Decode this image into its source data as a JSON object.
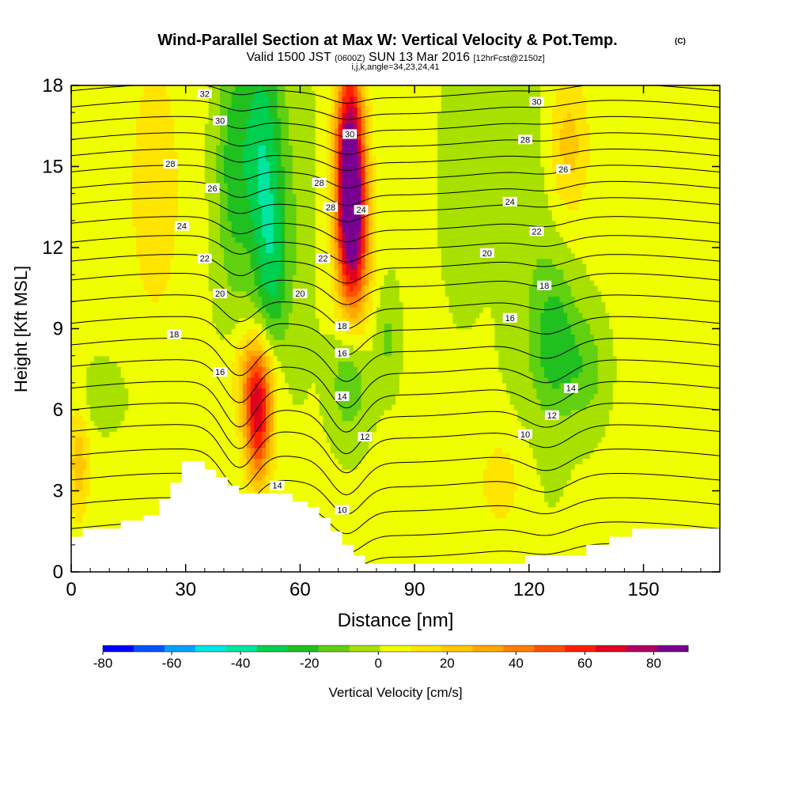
{
  "chart_data": {
    "type": "heatmap",
    "title": "Wind-Parallel Section at Max W: Vertical Velocity & Pot.Temp.",
    "title_mark": "(C)",
    "subtitle_prefix": "Valid 1500 JST",
    "subtitle_utc": "(0600Z)",
    "subtitle_date": "SUN 13 Mar 2016",
    "subtitle_fcst": "[12hrFcst@2150z]",
    "subtitle2": "i,j,k,angle=34,23,24,41",
    "xlabel": "Distance [nm]",
    "ylabel": "Height [Kft MSL]",
    "xlim": [
      0,
      170
    ],
    "ylim": [
      0,
      18
    ],
    "xticks": [
      "0",
      "30",
      "60",
      "90",
      "120",
      "150"
    ],
    "xtick_values": [
      0,
      30,
      60,
      90,
      120,
      150
    ],
    "yticks": [
      "0",
      "3",
      "6",
      "9",
      "12",
      "15",
      "18"
    ],
    "ytick_values": [
      0,
      3,
      6,
      9,
      12,
      15,
      18
    ],
    "colorbar": {
      "label": "Vertical Velocity [cm/s]",
      "ticks": [
        "-80",
        "-60",
        "-40",
        "-20",
        "0",
        "20",
        "40",
        "60",
        "80"
      ],
      "tick_values": [
        -80,
        -60,
        -40,
        -20,
        0,
        20,
        40,
        60,
        80
      ],
      "range": [
        -80,
        90
      ],
      "colors": [
        "#0000ff",
        "#0055ff",
        "#00a0ff",
        "#00e6e6",
        "#00e6a0",
        "#00d050",
        "#20c020",
        "#60d010",
        "#a8e000",
        "#f0ff00",
        "#ffe400",
        "#ffc800",
        "#ffa800",
        "#ff8000",
        "#ff5000",
        "#ff2000",
        "#e00020",
        "#b00060",
        "#7a0090"
      ]
    },
    "terrain_kft": [
      [
        0,
        1.3
      ],
      [
        3,
        1.3
      ],
      [
        3,
        1.6
      ],
      [
        13,
        1.6
      ],
      [
        13,
        1.9
      ],
      [
        19,
        1.9
      ],
      [
        19,
        2.1
      ],
      [
        23,
        2.1
      ],
      [
        23,
        2.7
      ],
      [
        26,
        2.7
      ],
      [
        26,
        3.3
      ],
      [
        29,
        3.3
      ],
      [
        29,
        4.1
      ],
      [
        35,
        4.1
      ],
      [
        35,
        3.8
      ],
      [
        38,
        3.8
      ],
      [
        38,
        3.5
      ],
      [
        41,
        3.5
      ],
      [
        41,
        3.2
      ],
      [
        44,
        3.2
      ],
      [
        44,
        2.9
      ],
      [
        58,
        2.9
      ],
      [
        58,
        2.6
      ],
      [
        62,
        2.6
      ],
      [
        62,
        2.4
      ],
      [
        65,
        2.4
      ],
      [
        65,
        2.0
      ],
      [
        68,
        2.0
      ],
      [
        68,
        1.5
      ],
      [
        71,
        1.5
      ],
      [
        71,
        1.0
      ],
      [
        74,
        1.0
      ],
      [
        74,
        0.6
      ],
      [
        77,
        0.6
      ],
      [
        77,
        0.3
      ],
      [
        119,
        0.3
      ],
      [
        119,
        0.6
      ],
      [
        135,
        0.6
      ],
      [
        135,
        1.0
      ],
      [
        141,
        1.0
      ],
      [
        141,
        1.3
      ],
      [
        147,
        1.3
      ],
      [
        147,
        1.6
      ],
      [
        170,
        1.6
      ]
    ],
    "velocity_features": [
      {
        "x": 73,
        "y": 15.3,
        "sx": 2.6,
        "sy": 2.6,
        "w": 85
      },
      {
        "x": 74,
        "y": 12.2,
        "sx": 3.0,
        "sy": 2.2,
        "w": 55
      },
      {
        "x": 49,
        "y": 5.6,
        "sx": 2.6,
        "sy": 1.6,
        "w": 62
      },
      {
        "x": 48,
        "y": 7.4,
        "sx": 4.0,
        "sy": 1.2,
        "w": 25
      },
      {
        "x": 22,
        "y": 14.2,
        "sx": 5.0,
        "sy": 3.5,
        "w": 15
      },
      {
        "x": 130,
        "y": 15.8,
        "sx": 4.0,
        "sy": 2.0,
        "w": 22
      },
      {
        "x": 113,
        "y": 3.3,
        "sx": 5.0,
        "sy": 1.5,
        "w": 12
      },
      {
        "x": 2,
        "y": 4.0,
        "sx": 2.0,
        "sy": 1.5,
        "w": 22
      },
      {
        "x": 50,
        "y": 15.5,
        "sx": 4.0,
        "sy": 3.5,
        "w": -35
      },
      {
        "x": 53,
        "y": 11.0,
        "sx": 3.0,
        "sy": 2.5,
        "w": -22
      },
      {
        "x": 42,
        "y": 15.0,
        "sx": 3.0,
        "sy": 3.5,
        "w": -20
      },
      {
        "x": 73,
        "y": 7.2,
        "sx": 3.5,
        "sy": 1.5,
        "w": -20
      },
      {
        "x": 83,
        "y": 8.7,
        "sx": 2.0,
        "sy": 1.3,
        "w": -12
      },
      {
        "x": 127,
        "y": 8.5,
        "sx": 4.0,
        "sy": 1.8,
        "w": -22
      },
      {
        "x": 135,
        "y": 7.5,
        "sx": 3.5,
        "sy": 1.4,
        "w": -15
      },
      {
        "x": 103,
        "y": 14.5,
        "sx": 4.0,
        "sy": 3.0,
        "w": -8
      },
      {
        "x": 122,
        "y": 12.0,
        "sx": 6.0,
        "sy": 6.0,
        "w": -8
      },
      {
        "x": 8,
        "y": 6.5,
        "sx": 4.0,
        "sy": 0.8,
        "w": -8
      },
      {
        "x": 60,
        "y": 13.0,
        "sx": 3.0,
        "sy": 4.0,
        "w": -6
      }
    ],
    "isentropes_kft": [
      {
        "base": 0.0,
        "amp": 0.45,
        "value": ""
      },
      {
        "base": 0.8,
        "amp": 0.6,
        "value": ""
      },
      {
        "base": 1.6,
        "amp": 0.8,
        "value": ""
      },
      {
        "base": 2.5,
        "amp": 1.0,
        "value": "10"
      },
      {
        "base": 3.4,
        "amp": 1.2,
        "value": ""
      },
      {
        "base": 4.3,
        "amp": 1.4,
        "value": "14"
      },
      {
        "base": 5.2,
        "amp": 1.5,
        "value": "12"
      },
      {
        "base": 6.0,
        "amp": 1.6,
        "value": "14"
      },
      {
        "base": 6.8,
        "amp": 1.6,
        "value": "16"
      },
      {
        "base": 7.6,
        "amp": 1.5,
        "value": "16"
      },
      {
        "base": 8.4,
        "amp": 1.3,
        "value": "18"
      },
      {
        "base": 9.2,
        "amp": 1.1,
        "value": "18"
      },
      {
        "base": 10.0,
        "amp": 0.9,
        "value": "20"
      },
      {
        "base": 10.8,
        "amp": 0.8,
        "value": "20"
      },
      {
        "base": 11.5,
        "amp": 0.7,
        "value": "22"
      },
      {
        "base": 12.2,
        "amp": 0.6,
        "value": "22"
      },
      {
        "base": 12.9,
        "amp": 0.55,
        "value": "24"
      },
      {
        "base": 13.6,
        "amp": 0.5,
        "value": "24"
      },
      {
        "base": 14.2,
        "amp": 0.5,
        "value": "26"
      },
      {
        "base": 14.8,
        "amp": 0.45,
        "value": "28"
      },
      {
        "base": 15.4,
        "amp": 0.4,
        "value": "28"
      },
      {
        "base": 16.0,
        "amp": 0.4,
        "value": "30"
      },
      {
        "base": 16.6,
        "amp": 0.35,
        "value": "30"
      },
      {
        "base": 17.2,
        "amp": 0.3,
        "value": "32"
      },
      {
        "base": 17.8,
        "amp": 0.3,
        "value": ""
      }
    ],
    "contour_labels": [
      {
        "x": 35,
        "y": 17.7,
        "text": "32"
      },
      {
        "x": 39,
        "y": 16.7,
        "text": "30"
      },
      {
        "x": 26,
        "y": 15.1,
        "text": "28"
      },
      {
        "x": 37,
        "y": 14.2,
        "text": "26"
      },
      {
        "x": 29,
        "y": 12.8,
        "text": "24"
      },
      {
        "x": 35,
        "y": 11.6,
        "text": "22"
      },
      {
        "x": 39,
        "y": 10.3,
        "text": "20"
      },
      {
        "x": 27,
        "y": 8.8,
        "text": "18"
      },
      {
        "x": 39,
        "y": 7.4,
        "text": "16"
      },
      {
        "x": 65,
        "y": 14.4,
        "text": "28"
      },
      {
        "x": 68,
        "y": 13.5,
        "text": "28"
      },
      {
        "x": 73,
        "y": 16.2,
        "text": "30"
      },
      {
        "x": 76,
        "y": 13.4,
        "text": "24"
      },
      {
        "x": 66,
        "y": 11.6,
        "text": "22"
      },
      {
        "x": 60,
        "y": 10.3,
        "text": "20"
      },
      {
        "x": 71,
        "y": 9.1,
        "text": "18"
      },
      {
        "x": 71,
        "y": 8.1,
        "text": "16"
      },
      {
        "x": 71,
        "y": 6.5,
        "text": "14"
      },
      {
        "x": 77,
        "y": 5.0,
        "text": "12"
      },
      {
        "x": 54,
        "y": 3.2,
        "text": "14"
      },
      {
        "x": 71,
        "y": 2.3,
        "text": "10"
      },
      {
        "x": 122,
        "y": 17.4,
        "text": "30"
      },
      {
        "x": 119,
        "y": 16.0,
        "text": "28"
      },
      {
        "x": 129,
        "y": 14.9,
        "text": "26"
      },
      {
        "x": 115,
        "y": 13.7,
        "text": "24"
      },
      {
        "x": 122,
        "y": 12.6,
        "text": "22"
      },
      {
        "x": 109,
        "y": 11.8,
        "text": "20"
      },
      {
        "x": 124,
        "y": 10.6,
        "text": "18"
      },
      {
        "x": 115,
        "y": 9.4,
        "text": "16"
      },
      {
        "x": 131,
        "y": 6.8,
        "text": "14"
      },
      {
        "x": 126,
        "y": 5.8,
        "text": "12"
      },
      {
        "x": 119,
        "y": 5.1,
        "text": "10"
      }
    ]
  }
}
